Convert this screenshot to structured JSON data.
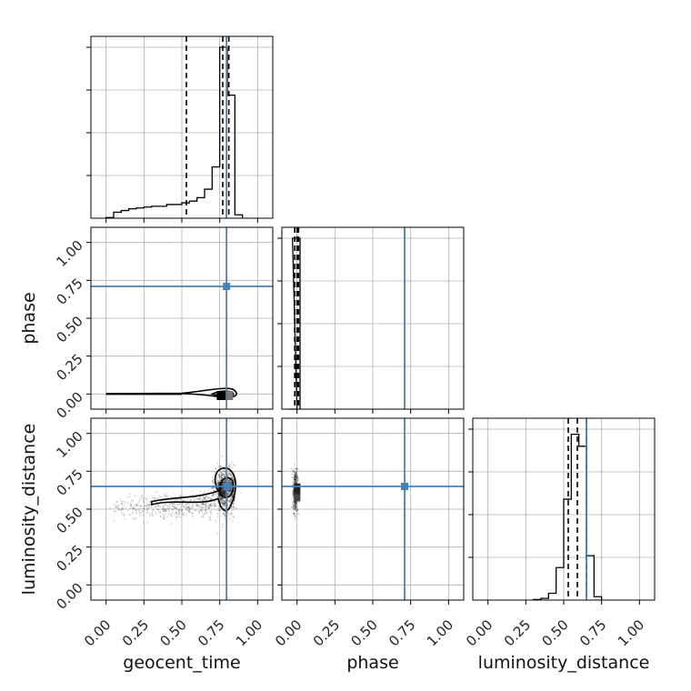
{
  "chart_data": {
    "type": "corner",
    "params": [
      "geocent_time",
      "phase",
      "luminosity_distance"
    ],
    "labels": {
      "geocent_time": "geocent_time",
      "phase": "phase",
      "luminosity_distance": "luminosity_distance"
    },
    "ticks": [
      "0.00",
      "0.25",
      "0.50",
      "0.75",
      "1.00"
    ],
    "tick_values": [
      0,
      0.25,
      0.5,
      0.75,
      1.0
    ],
    "range": [
      -0.1,
      1.1
    ],
    "grid": true,
    "truth": {
      "geocent_time": 0.795,
      "phase": 0.71,
      "luminosity_distance": 0.65
    },
    "truth_color": "#4682b4",
    "hist_color": "#000000",
    "histograms": {
      "geocent_time": {
        "bin_width": 0.05,
        "bins": [
          [
            0.0,
            0.004
          ],
          [
            0.05,
            0.035
          ],
          [
            0.1,
            0.045
          ],
          [
            0.15,
            0.055
          ],
          [
            0.2,
            0.06
          ],
          [
            0.25,
            0.065
          ],
          [
            0.3,
            0.07
          ],
          [
            0.35,
            0.07
          ],
          [
            0.4,
            0.08
          ],
          [
            0.45,
            0.08
          ],
          [
            0.5,
            0.09
          ],
          [
            0.55,
            0.1
          ],
          [
            0.6,
            0.12
          ],
          [
            0.65,
            0.17
          ],
          [
            0.7,
            0.3
          ],
          [
            0.75,
            1.0
          ],
          [
            0.8,
            0.72
          ],
          [
            0.85,
            0.02
          ]
        ],
        "quantiles": [
          0.53,
          0.77,
          0.81
        ]
      },
      "phase": {
        "bin_width": 0.05,
        "bins": [
          [
            -0.05,
            0.0
          ],
          [
            -0.03,
            1.0
          ]
        ],
        "quantiles": [
          -0.015,
          0.0,
          0.01
        ]
      },
      "luminosity_distance": {
        "bin_width": 0.05,
        "bins": [
          [
            0.3,
            0.003
          ],
          [
            0.35,
            0.01
          ],
          [
            0.4,
            0.04
          ],
          [
            0.45,
            0.19
          ],
          [
            0.5,
            0.59
          ],
          [
            0.55,
            0.97
          ],
          [
            0.6,
            0.9
          ],
          [
            0.65,
            0.26
          ],
          [
            0.7,
            0.02
          ]
        ],
        "quantiles": [
          0.53,
          0.59,
          0.65
        ]
      }
    },
    "scatter_pairs": [
      {
        "x": "geocent_time",
        "y": "phase"
      },
      {
        "x": "geocent_time",
        "y": "luminosity_distance"
      },
      {
        "x": "phase",
        "y": "luminosity_distance"
      }
    ]
  }
}
